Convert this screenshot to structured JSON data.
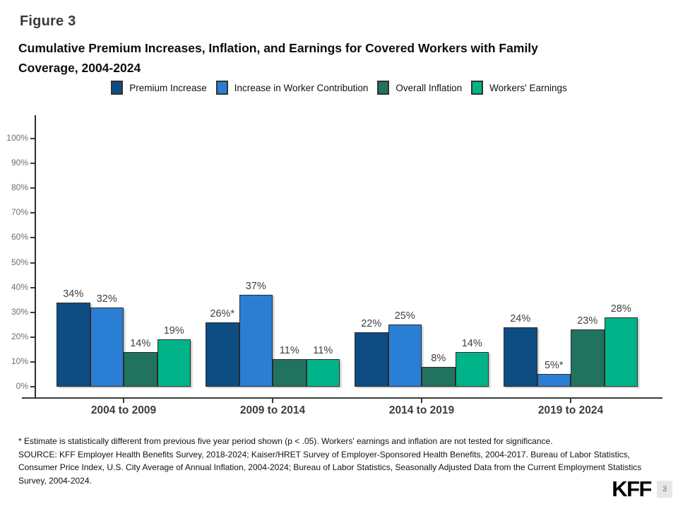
{
  "figure_label": "Figure 3",
  "title": {
    "line1": "Cumulative Premium Increases, Inflation, and Earnings for Covered Workers with Family",
    "line2": "Coverage, 2004-2024"
  },
  "chart_data": {
    "type": "bar",
    "categories": [
      "2004 to 2009",
      "2009 to 2014",
      "2014 to 2019",
      "2019 to 2024"
    ],
    "series": [
      {
        "name": "Premium Increase",
        "color": "#0E4D83",
        "values": [
          34,
          26,
          22,
          24
        ],
        "labels": [
          "34%",
          "26%*",
          "22%",
          "24%"
        ]
      },
      {
        "name": "Increase in Worker Contribution",
        "color": "#2A7FD4",
        "values": [
          32,
          37,
          25,
          5
        ],
        "labels": [
          "32%",
          "37%",
          "25%",
          "5%*"
        ]
      },
      {
        "name": "Overall Inflation",
        "color": "#21735F",
        "values": [
          14,
          11,
          8,
          23
        ],
        "labels": [
          "14%",
          "11%",
          "8%",
          "23%"
        ]
      },
      {
        "name": "Workers' Earnings",
        "color": "#00B388",
        "values": [
          19,
          11,
          14,
          28
        ],
        "labels": [
          "19%",
          "11%",
          "14%",
          "28%"
        ]
      }
    ],
    "ylim": [
      0,
      100
    ],
    "yticks": [
      "0%",
      "10%",
      "20%",
      "30%",
      "40%",
      "50%",
      "60%",
      "70%",
      "80%",
      "90%",
      "100%"
    ],
    "grid": false,
    "legend_position": "top"
  },
  "footnote": "* Estimate is statistically different from previous five year period shown (p < .05). Workers' earnings and inflation are not tested for significance.",
  "source": "SOURCE: KFF Employer Health Benefits Survey, 2018-2024; Kaiser/HRET Survey of Employer-Sponsored Health Benefits, 2004-2017. Bureau of Labor Statistics, Consumer Price Index, U.S. City Average of Annual Inflation, 2004-2024; Bureau of Labor Statistics, Seasonally Adjusted Data from the Current Employment Statistics Survey, 2004-2024.",
  "logo": "KFF",
  "page_number": "3"
}
